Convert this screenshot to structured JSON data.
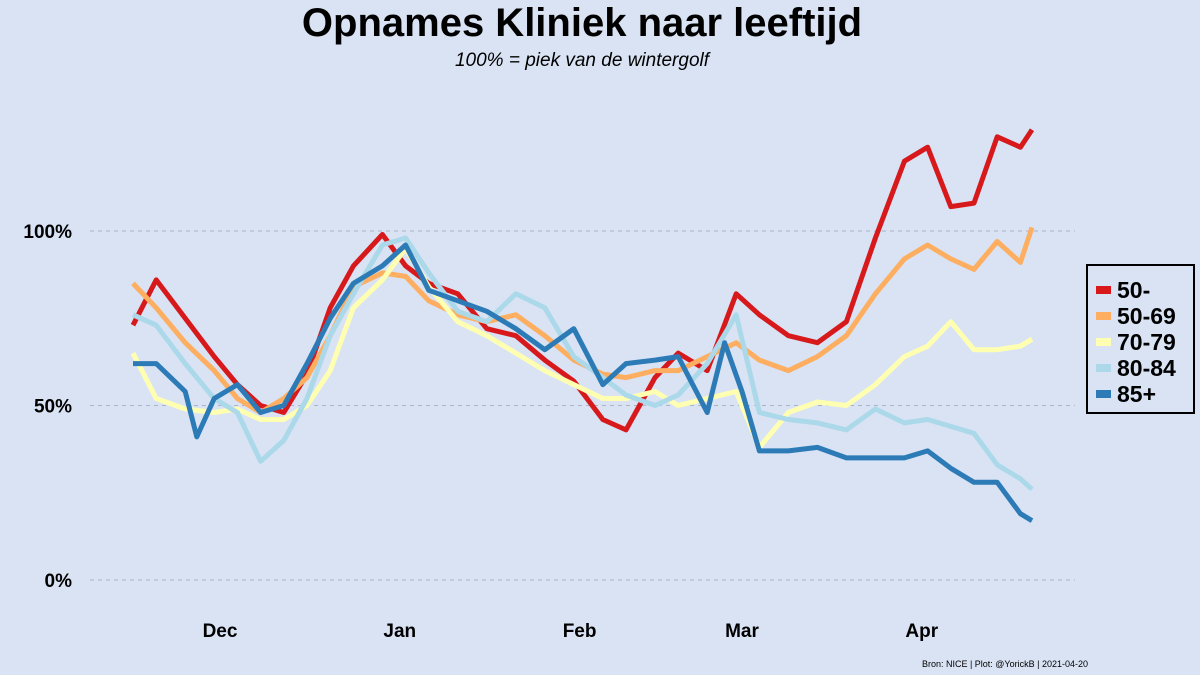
{
  "chart_data": {
    "type": "line",
    "title": "Opnames Kliniek naar leeftijd",
    "subtitle": "100% = piek van de wintergolf",
    "xlabel": "",
    "ylabel": "",
    "x_range": [
      "2020-11-16",
      "2021-04-20"
    ],
    "ylim": [
      0,
      140
    ],
    "y_ticks": [
      {
        "value": 0,
        "label": "0%"
      },
      {
        "value": 50,
        "label": "50%"
      },
      {
        "value": 100,
        "label": "100%"
      }
    ],
    "x_ticks": [
      {
        "date": "2020-12-01",
        "label": "Dec"
      },
      {
        "date": "2021-01-01",
        "label": "Jan"
      },
      {
        "date": "2021-02-01",
        "label": "Feb"
      },
      {
        "date": "2021-03-01",
        "label": "Mar"
      },
      {
        "date": "2021-04-01",
        "label": "Apr"
      }
    ],
    "grid": "horizontal dashed",
    "legend_position": "right",
    "series": [
      {
        "name": "50-",
        "color": "#d7191c",
        "points": [
          [
            "2020-11-16",
            73
          ],
          [
            "2020-11-20",
            86
          ],
          [
            "2020-11-25",
            75
          ],
          [
            "2020-11-30",
            64
          ],
          [
            "2020-12-04",
            56
          ],
          [
            "2020-12-08",
            50
          ],
          [
            "2020-12-12",
            48
          ],
          [
            "2020-12-16",
            59
          ],
          [
            "2020-12-20",
            78
          ],
          [
            "2020-12-24",
            90
          ],
          [
            "2020-12-29",
            99
          ],
          [
            "2021-01-02",
            90
          ],
          [
            "2021-01-06",
            85
          ],
          [
            "2021-01-11",
            82
          ],
          [
            "2021-01-16",
            72
          ],
          [
            "2021-01-21",
            70
          ],
          [
            "2021-01-26",
            63
          ],
          [
            "2021-01-31",
            57
          ],
          [
            "2021-02-05",
            46
          ],
          [
            "2021-02-09",
            43
          ],
          [
            "2021-02-14",
            58
          ],
          [
            "2021-02-18",
            65
          ],
          [
            "2021-02-23",
            60
          ],
          [
            "2021-02-28",
            82
          ],
          [
            "2021-03-04",
            76
          ],
          [
            "2021-03-09",
            70
          ],
          [
            "2021-03-14",
            68
          ],
          [
            "2021-03-19",
            74
          ],
          [
            "2021-03-24",
            98
          ],
          [
            "2021-03-29",
            120
          ],
          [
            "2021-04-02",
            124
          ],
          [
            "2021-04-06",
            107
          ],
          [
            "2021-04-10",
            108
          ],
          [
            "2021-04-14",
            127
          ],
          [
            "2021-04-18",
            124
          ],
          [
            "2021-04-20",
            129
          ]
        ]
      },
      {
        "name": "50-69",
        "color": "#fdae61",
        "points": [
          [
            "2020-11-16",
            85
          ],
          [
            "2020-11-20",
            78
          ],
          [
            "2020-11-25",
            68
          ],
          [
            "2020-11-30",
            60
          ],
          [
            "2020-12-04",
            52
          ],
          [
            "2020-12-08",
            48
          ],
          [
            "2020-12-12",
            52
          ],
          [
            "2020-12-16",
            58
          ],
          [
            "2020-12-20",
            70
          ],
          [
            "2020-12-24",
            84
          ],
          [
            "2020-12-29",
            88
          ],
          [
            "2021-01-02",
            87
          ],
          [
            "2021-01-06",
            80
          ],
          [
            "2021-01-11",
            76
          ],
          [
            "2021-01-16",
            74
          ],
          [
            "2021-01-21",
            76
          ],
          [
            "2021-01-26",
            70
          ],
          [
            "2021-01-31",
            63
          ],
          [
            "2021-02-05",
            59
          ],
          [
            "2021-02-09",
            58
          ],
          [
            "2021-02-14",
            60
          ],
          [
            "2021-02-18",
            60
          ],
          [
            "2021-02-23",
            64
          ],
          [
            "2021-02-28",
            68
          ],
          [
            "2021-03-04",
            63
          ],
          [
            "2021-03-09",
            60
          ],
          [
            "2021-03-14",
            64
          ],
          [
            "2021-03-19",
            70
          ],
          [
            "2021-03-24",
            82
          ],
          [
            "2021-03-29",
            92
          ],
          [
            "2021-04-02",
            96
          ],
          [
            "2021-04-06",
            92
          ],
          [
            "2021-04-10",
            89
          ],
          [
            "2021-04-14",
            97
          ],
          [
            "2021-04-18",
            91
          ],
          [
            "2021-04-20",
            101
          ]
        ]
      },
      {
        "name": "70-79",
        "color": "#ffffb2",
        "points": [
          [
            "2020-11-16",
            65
          ],
          [
            "2020-11-20",
            52
          ],
          [
            "2020-11-25",
            49
          ],
          [
            "2020-11-30",
            48
          ],
          [
            "2020-12-04",
            49
          ],
          [
            "2020-12-08",
            46
          ],
          [
            "2020-12-12",
            46
          ],
          [
            "2020-12-16",
            50
          ],
          [
            "2020-12-20",
            60
          ],
          [
            "2020-12-24",
            78
          ],
          [
            "2020-12-29",
            86
          ],
          [
            "2021-01-02",
            95
          ],
          [
            "2021-01-06",
            84
          ],
          [
            "2021-01-11",
            74
          ],
          [
            "2021-01-16",
            70
          ],
          [
            "2021-01-21",
            65
          ],
          [
            "2021-01-26",
            60
          ],
          [
            "2021-01-31",
            56
          ],
          [
            "2021-02-05",
            52
          ],
          [
            "2021-02-09",
            52
          ],
          [
            "2021-02-14",
            54
          ],
          [
            "2021-02-18",
            50
          ],
          [
            "2021-02-23",
            52
          ],
          [
            "2021-02-28",
            54
          ],
          [
            "2021-03-04",
            38
          ],
          [
            "2021-03-09",
            48
          ],
          [
            "2021-03-14",
            51
          ],
          [
            "2021-03-19",
            50
          ],
          [
            "2021-03-24",
            56
          ],
          [
            "2021-03-29",
            64
          ],
          [
            "2021-04-02",
            67
          ],
          [
            "2021-04-06",
            74
          ],
          [
            "2021-04-10",
            66
          ],
          [
            "2021-04-14",
            66
          ],
          [
            "2021-04-18",
            67
          ],
          [
            "2021-04-20",
            69
          ]
        ]
      },
      {
        "name": "80-84",
        "color": "#abd9e9",
        "points": [
          [
            "2020-11-16",
            76
          ],
          [
            "2020-11-20",
            73
          ],
          [
            "2020-11-25",
            62
          ],
          [
            "2020-11-30",
            52
          ],
          [
            "2020-12-04",
            48
          ],
          [
            "2020-12-08",
            34
          ],
          [
            "2020-12-12",
            40
          ],
          [
            "2020-12-16",
            52
          ],
          [
            "2020-12-20",
            70
          ],
          [
            "2020-12-24",
            82
          ],
          [
            "2020-12-29",
            96
          ],
          [
            "2021-01-02",
            98
          ],
          [
            "2021-01-06",
            88
          ],
          [
            "2021-01-11",
            77
          ],
          [
            "2021-01-16",
            74
          ],
          [
            "2021-01-21",
            82
          ],
          [
            "2021-01-26",
            78
          ],
          [
            "2021-01-31",
            64
          ],
          [
            "2021-02-05",
            58
          ],
          [
            "2021-02-09",
            53
          ],
          [
            "2021-02-14",
            50
          ],
          [
            "2021-02-18",
            53
          ],
          [
            "2021-02-23",
            62
          ],
          [
            "2021-02-28",
            76
          ],
          [
            "2021-03-04",
            48
          ],
          [
            "2021-03-09",
            46
          ],
          [
            "2021-03-14",
            45
          ],
          [
            "2021-03-19",
            43
          ],
          [
            "2021-03-24",
            49
          ],
          [
            "2021-03-29",
            45
          ],
          [
            "2021-04-02",
            46
          ],
          [
            "2021-04-06",
            44
          ],
          [
            "2021-04-10",
            42
          ],
          [
            "2021-04-14",
            33
          ],
          [
            "2021-04-18",
            29
          ],
          [
            "2021-04-20",
            26
          ]
        ]
      },
      {
        "name": "85+",
        "color": "#2c7bb6",
        "points": [
          [
            "2020-11-16",
            62
          ],
          [
            "2020-11-20",
            62
          ],
          [
            "2020-11-25",
            54
          ],
          [
            "2020-11-27",
            41
          ],
          [
            "2020-11-30",
            52
          ],
          [
            "2020-12-04",
            56
          ],
          [
            "2020-12-08",
            48
          ],
          [
            "2020-12-12",
            50
          ],
          [
            "2020-12-16",
            62
          ],
          [
            "2020-12-20",
            75
          ],
          [
            "2020-12-24",
            85
          ],
          [
            "2020-12-29",
            90
          ],
          [
            "2021-01-02",
            96
          ],
          [
            "2021-01-06",
            83
          ],
          [
            "2021-01-11",
            80
          ],
          [
            "2021-01-16",
            77
          ],
          [
            "2021-01-21",
            72
          ],
          [
            "2021-01-26",
            66
          ],
          [
            "2021-01-31",
            72
          ],
          [
            "2021-02-05",
            56
          ],
          [
            "2021-02-09",
            62
          ],
          [
            "2021-02-14",
            63
          ],
          [
            "2021-02-18",
            64
          ],
          [
            "2021-02-23",
            48
          ],
          [
            "2021-02-26",
            68
          ],
          [
            "2021-03-01",
            54
          ],
          [
            "2021-03-04",
            37
          ],
          [
            "2021-03-09",
            37
          ],
          [
            "2021-03-14",
            38
          ],
          [
            "2021-03-19",
            35
          ],
          [
            "2021-03-24",
            35
          ],
          [
            "2021-03-29",
            35
          ],
          [
            "2021-04-02",
            37
          ],
          [
            "2021-04-06",
            32
          ],
          [
            "2021-04-10",
            28
          ],
          [
            "2021-04-14",
            28
          ],
          [
            "2021-04-18",
            19
          ],
          [
            "2021-04-20",
            17
          ]
        ]
      }
    ],
    "source_note": "Bron: NICE | Plot: @YorickB  |  2021-04-20"
  }
}
